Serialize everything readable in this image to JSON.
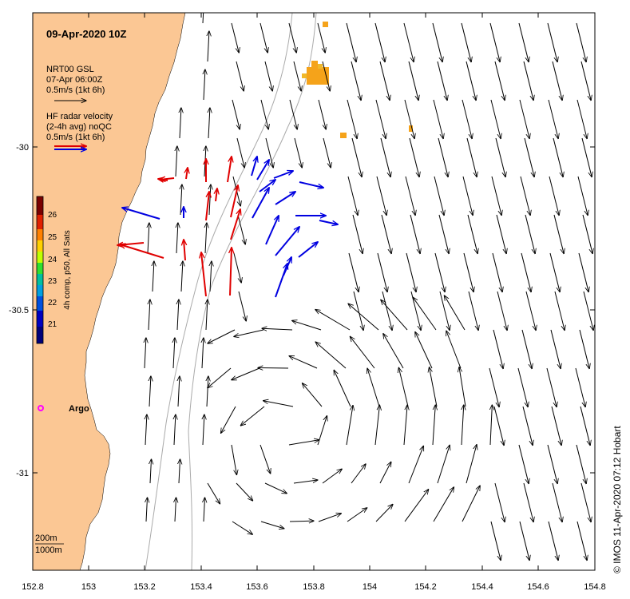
{
  "title": "09-Apr-2020 10Z",
  "legend": {
    "model_name": "NRT00 GSL",
    "model_time": "07-Apr 06:00Z",
    "model_scale": "0.5m/s (1kt 6h)",
    "radar_line1": "HF radar velocity",
    "radar_line2": "(2-4h avg) noQC",
    "radar_scale": "0.5m/s (1kt 6h)"
  },
  "colorbar": {
    "label": "4h comp, p50, All Sats",
    "ticks": [
      "26",
      "25",
      "24",
      "23",
      "22",
      "21"
    ]
  },
  "x_ticks": [
    "152.8",
    "153",
    "153.2",
    "153.4",
    "153.6",
    "153.8",
    "154",
    "154.2",
    "154.4",
    "154.6",
    "154.8"
  ],
  "y_ticks": [
    "-30",
    "-30.5",
    "-31"
  ],
  "argo_label": "Argo",
  "isobaths": [
    "200m",
    "1000m"
  ],
  "credit": "© IMOS 11-Apr-2020 07:12 Hobart",
  "colors": {
    "land": "#fbc794",
    "radar_blue": "#0000e0",
    "radar_red": "#e00000",
    "argo": "#ff00ff",
    "sst_warm": "#f5a31a"
  }
}
